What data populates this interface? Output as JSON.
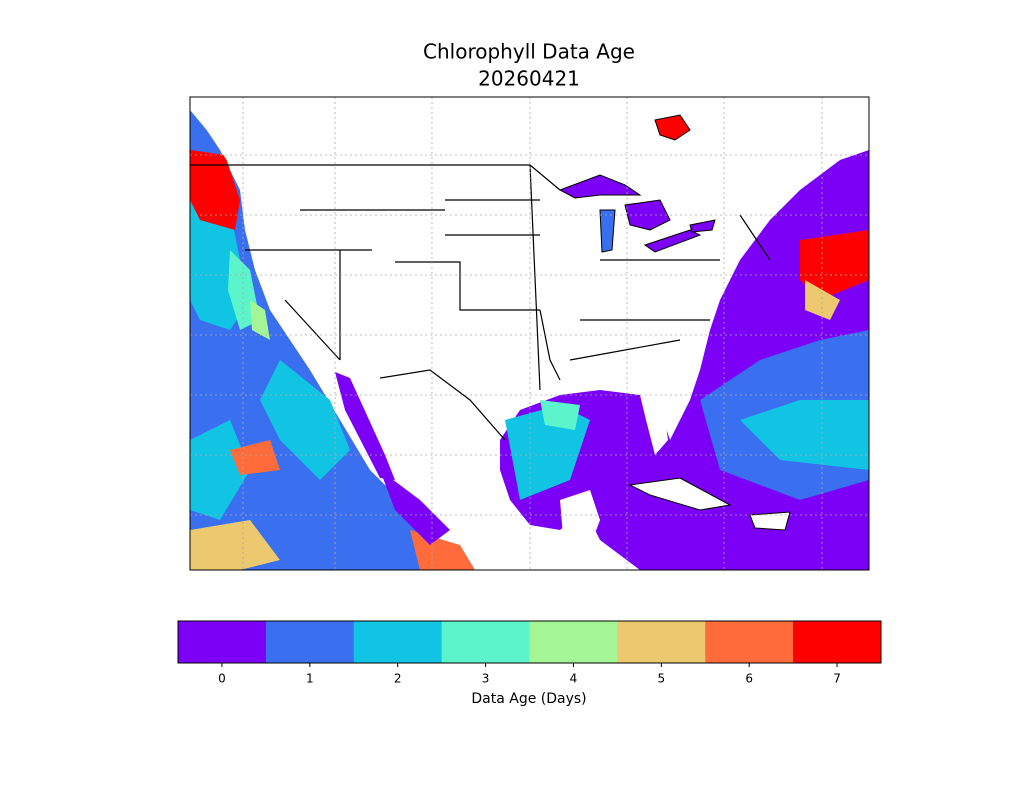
{
  "title": [
    "Chlorophyll Data Age",
    "20260421"
  ],
  "colorbar": {
    "label": "Data Age (Days)",
    "ticks": [
      0,
      1,
      2,
      3,
      4,
      5,
      6,
      7
    ],
    "colors": [
      "#7b00f5",
      "#3a6ff0",
      "#12c4e4",
      "#5cf5cb",
      "#a3f596",
      "#ecc86f",
      "#ff6b3a",
      "#ff0000"
    ]
  }
}
